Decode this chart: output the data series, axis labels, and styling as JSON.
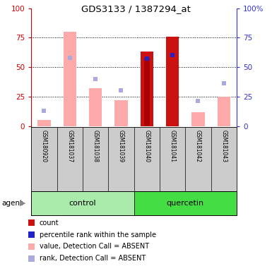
{
  "title": "GDS3133 / 1387294_at",
  "samples": [
    "GSM180920",
    "GSM181037",
    "GSM181038",
    "GSM181039",
    "GSM181040",
    "GSM181041",
    "GSM181042",
    "GSM181043"
  ],
  "groups": [
    "control",
    "control",
    "control",
    "control",
    "quercetin",
    "quercetin",
    "quercetin",
    "quercetin"
  ],
  "bar_values": [
    5,
    80,
    32,
    22,
    63,
    76,
    12,
    25
  ],
  "bar_colors": [
    "#ffaaaa",
    "#ffaaaa",
    "#ffaaaa",
    "#ffaaaa",
    "#cc1111",
    "#cc1111",
    "#ffaaaa",
    "#ffaaaa"
  ],
  "rank_squares": [
    13,
    58,
    40,
    30,
    57,
    60,
    21,
    36
  ],
  "rank_colors": [
    "#aaaadd",
    "#aaaadd",
    "#aaaadd",
    "#aaaadd",
    "#2222cc",
    "#2222cc",
    "#aaaadd",
    "#aaaadd"
  ],
  "count_bar": [
    null,
    null,
    null,
    null,
    58,
    null,
    null,
    null
  ],
  "ylim": [
    0,
    100
  ],
  "yticks": [
    0,
    25,
    50,
    75,
    100
  ],
  "left_axis_color": "#cc0000",
  "right_axis_color": "#3333cc",
  "plot_bg_color": "#ffffff",
  "sample_bg_color": "#cccccc",
  "control_bg": "#aaeaaa",
  "quercetin_bg": "#44dd44",
  "legend_items": [
    {
      "label": "count",
      "color": "#cc1111"
    },
    {
      "label": "percentile rank within the sample",
      "color": "#2222cc"
    },
    {
      "label": "value, Detection Call = ABSENT",
      "color": "#ffaaaa"
    },
    {
      "label": "rank, Detection Call = ABSENT",
      "color": "#aaaadd"
    }
  ]
}
